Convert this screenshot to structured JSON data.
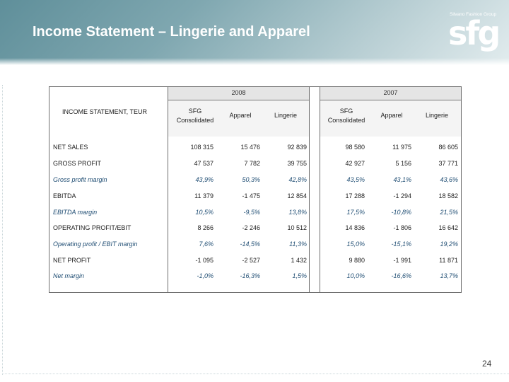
{
  "header": {
    "title": "Income Statement – Lingerie and Apparel",
    "logo_small": "Silvano Fashion Group",
    "logo": "sfg"
  },
  "table": {
    "title": "INCOME STATEMENT, TEUR",
    "years": [
      "2008",
      "2007"
    ],
    "columns": [
      "SFG Consolidated",
      "Apparel",
      "Lingerie",
      "SFG Consolidated",
      "Apparel",
      "Lingerie"
    ],
    "rows": [
      {
        "label": "NET SALES",
        "italic": false,
        "values": [
          "108 315",
          "15 476",
          "92 839",
          "98 580",
          "11 975",
          "86 605"
        ]
      },
      {
        "label": "GROSS PROFIT",
        "italic": false,
        "values": [
          "47 537",
          "7 782",
          "39 755",
          "42 927",
          "5 156",
          "37 771"
        ]
      },
      {
        "label": "Gross profit margin",
        "italic": true,
        "values": [
          "43,9%",
          "50,3%",
          "42,8%",
          "43,5%",
          "43,1%",
          "43,6%"
        ]
      },
      {
        "label": "EBITDA",
        "italic": false,
        "values": [
          "11 379",
          "-1 475",
          "12 854",
          "17 288",
          "-1 294",
          "18 582"
        ]
      },
      {
        "label": "EBITDA margin",
        "italic": true,
        "values": [
          "10,5%",
          "-9,5%",
          "13,8%",
          "17,5%",
          "-10,8%",
          "21,5%"
        ]
      },
      {
        "label": "OPERATING PROFIT/EBIT",
        "italic": false,
        "values": [
          "8 266",
          "-2 246",
          "10 512",
          "14 836",
          "-1 806",
          "16 642"
        ]
      },
      {
        "label": "Operating profit / EBIT margin",
        "italic": true,
        "values": [
          "7,6%",
          "-14,5%",
          "11,3%",
          "15,0%",
          "-15,1%",
          "19,2%"
        ]
      },
      {
        "label": "NET PROFIT",
        "italic": false,
        "values": [
          "-1 095",
          "-2 527",
          "1 432",
          "9 880",
          "-1 991",
          "11 871"
        ]
      },
      {
        "label": "Net margin",
        "italic": true,
        "values": [
          "-1,0%",
          "-16,3%",
          "1,5%",
          "10,0%",
          "-16,6%",
          "13,7%"
        ]
      }
    ]
  },
  "footer": {
    "page_number": "24"
  }
}
